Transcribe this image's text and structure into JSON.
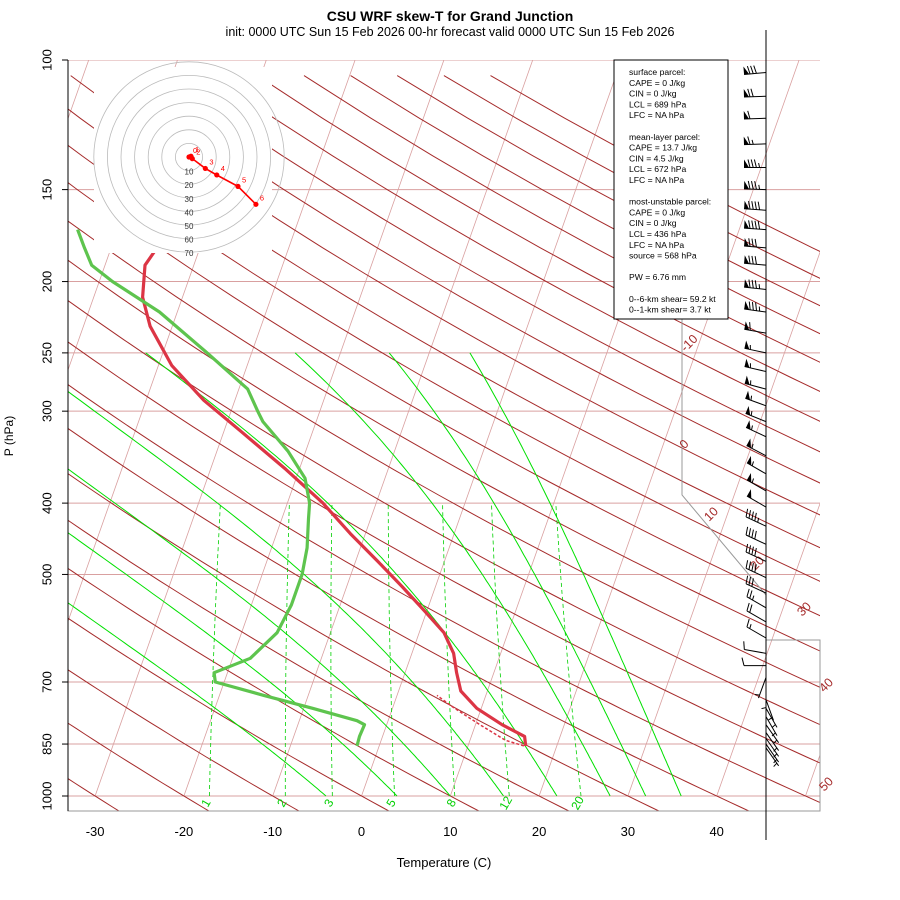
{
  "title": "CSU WRF skew-T for Grand Junction",
  "subtitle": "init: 0000 UTC Sun 15 Feb 2026     00-hr forecast valid 0000 UTC Sun 15 Feb 2026",
  "colors": {
    "temperature": "#dc3545",
    "dewpoint": "#5ec44e",
    "isotherm": "#a52a2a",
    "dry_adiabat": "#a52a2a",
    "moist_adiabat": "#00e000",
    "mixing_ratio": "#00d000",
    "isobar": "#d9a0a0",
    "hodograph": "#ff0000"
  },
  "chart_data": {
    "type": "line",
    "title": "CSU WRF skew-T for Grand Junction",
    "xlabel": "Temperature (C)",
    "ylabel": "P (hPa)",
    "xlim": [
      -33,
      52
    ],
    "ylim": [
      1000,
      100
    ],
    "y_scale": "log",
    "x_ticks": [
      -30,
      -20,
      -10,
      0,
      10,
      20,
      30,
      40
    ],
    "y_ticks": [
      100,
      150,
      200,
      250,
      300,
      400,
      500,
      700,
      850,
      1000
    ],
    "isotherm_labels": [
      -10,
      0,
      10,
      20,
      30,
      40,
      50
    ],
    "mixing_ratio_labels": [
      "1",
      "2",
      "3",
      "5",
      "8",
      "12",
      "20"
    ],
    "series": [
      {
        "role": "temperature",
        "points": [
          [
            855,
            16.5
          ],
          [
            830,
            16.0
          ],
          [
            800,
            13.0
          ],
          [
            760,
            9.5
          ],
          [
            720,
            7.0
          ],
          [
            680,
            5.8
          ],
          [
            640,
            4.7
          ],
          [
            600,
            2.8
          ],
          [
            560,
            -0.3
          ],
          [
            520,
            -3.7
          ],
          [
            480,
            -7.5
          ],
          [
            440,
            -11.7
          ],
          [
            400,
            -16.0
          ],
          [
            360,
            -21.5
          ],
          [
            320,
            -28.0
          ],
          [
            290,
            -33.5
          ],
          [
            260,
            -38.5
          ],
          [
            230,
            -42.5
          ],
          [
            210,
            -44.5
          ],
          [
            190,
            -45.5
          ],
          [
            175,
            -44.5
          ],
          [
            160,
            -43.0
          ],
          [
            150,
            -42.0
          ],
          [
            140,
            -44.0
          ],
          [
            130,
            -47.0
          ],
          [
            120,
            -50.5
          ],
          [
            110,
            -53.0
          ],
          [
            103,
            -55.0
          ]
        ]
      },
      {
        "role": "dewpoint",
        "points": [
          [
            855,
            -2.5
          ],
          [
            830,
            -2.6
          ],
          [
            800,
            -2.5
          ],
          [
            790,
            -3.5
          ],
          [
            760,
            -9.0
          ],
          [
            730,
            -15.0
          ],
          [
            700,
            -21.0
          ],
          [
            680,
            -21.5
          ],
          [
            650,
            -18.0
          ],
          [
            600,
            -16.0
          ],
          [
            550,
            -15.5
          ],
          [
            500,
            -15.5
          ],
          [
            460,
            -16.0
          ],
          [
            420,
            -17.0
          ],
          [
            400,
            -17.5
          ],
          [
            370,
            -19.0
          ],
          [
            340,
            -22.0
          ],
          [
            310,
            -26.0
          ],
          [
            300,
            -27.0
          ],
          [
            280,
            -29.0
          ],
          [
            250,
            -35.0
          ],
          [
            220,
            -42.0
          ],
          [
            200,
            -48.5
          ],
          [
            190,
            -51.5
          ],
          [
            180,
            -53.0
          ],
          [
            170,
            -54.5
          ]
        ]
      },
      {
        "role": "parcel",
        "points": [
          [
            855,
            16.3
          ],
          [
            840,
            14.0
          ],
          [
            800,
            10.5
          ],
          [
            760,
            7.0
          ],
          [
            730,
            4.5
          ]
        ]
      }
    ],
    "hodograph": {
      "rings": [
        "10",
        "20",
        "30",
        "40",
        "50",
        "60",
        "70"
      ],
      "point_labels": [
        "0",
        "1",
        "2",
        "3",
        "4",
        "5",
        "6"
      ],
      "points_uv": [
        [
          0,
          0
        ],
        [
          0.5,
          0.8
        ],
        [
          1.2,
          0.5
        ],
        [
          2.0,
          -1.0
        ],
        [
          10.0,
          -7.0
        ],
        [
          17.0,
          -11.0
        ],
        [
          30.0,
          -18.0
        ],
        [
          41.0,
          -29.0
        ]
      ]
    },
    "wind_barbs": [
      {
        "p": 104,
        "speed": 80,
        "dir": 265
      },
      {
        "p": 112,
        "speed": 70,
        "dir": 268
      },
      {
        "p": 120,
        "speed": 60,
        "dir": 268
      },
      {
        "p": 130,
        "speed": 65,
        "dir": 268
      },
      {
        "p": 140,
        "speed": 85,
        "dir": 270
      },
      {
        "p": 150,
        "speed": 85,
        "dir": 272
      },
      {
        "p": 160,
        "speed": 90,
        "dir": 274
      },
      {
        "p": 170,
        "speed": 90,
        "dir": 274
      },
      {
        "p": 180,
        "speed": 80,
        "dir": 275
      },
      {
        "p": 190,
        "speed": 80,
        "dir": 275
      },
      {
        "p": 205,
        "speed": 85,
        "dir": 276
      },
      {
        "p": 220,
        "speed": 85,
        "dir": 278
      },
      {
        "p": 235,
        "speed": 60,
        "dir": 280
      },
      {
        "p": 250,
        "speed": 55,
        "dir": 282
      },
      {
        "p": 265,
        "speed": 55,
        "dir": 283
      },
      {
        "p": 280,
        "speed": 55,
        "dir": 285
      },
      {
        "p": 295,
        "speed": 55,
        "dir": 290
      },
      {
        "p": 310,
        "speed": 55,
        "dir": 292
      },
      {
        "p": 325,
        "speed": 55,
        "dir": 295
      },
      {
        "p": 345,
        "speed": 55,
        "dir": 298
      },
      {
        "p": 365,
        "speed": 55,
        "dir": 300
      },
      {
        "p": 385,
        "speed": 55,
        "dir": 300
      },
      {
        "p": 405,
        "speed": 50,
        "dir": 300
      },
      {
        "p": 430,
        "speed": 45,
        "dir": 295
      },
      {
        "p": 455,
        "speed": 40,
        "dir": 295
      },
      {
        "p": 480,
        "speed": 40,
        "dir": 295
      },
      {
        "p": 505,
        "speed": 40,
        "dir": 295
      },
      {
        "p": 530,
        "speed": 30,
        "dir": 295
      },
      {
        "p": 555,
        "speed": 25,
        "dir": 300
      },
      {
        "p": 580,
        "speed": 20,
        "dir": 300
      },
      {
        "p": 610,
        "speed": 15,
        "dir": 300
      },
      {
        "p": 640,
        "speed": 10,
        "dir": 280
      },
      {
        "p": 665,
        "speed": 10,
        "dir": 270
      },
      {
        "p": 690,
        "speed": 5,
        "dir": 200
      },
      {
        "p": 715,
        "speed": 5,
        "dir": 180
      },
      {
        "p": 740,
        "speed": 5,
        "dir": 160
      },
      {
        "p": 760,
        "speed": 5,
        "dir": 150
      },
      {
        "p": 780,
        "speed": 5,
        "dir": 150
      },
      {
        "p": 800,
        "speed": 5,
        "dir": 145
      },
      {
        "p": 820,
        "speed": 5,
        "dir": 145
      },
      {
        "p": 835,
        "speed": 5,
        "dir": 145
      },
      {
        "p": 850,
        "speed": 5,
        "dir": 145
      },
      {
        "p": 860,
        "speed": 5,
        "dir": 145
      }
    ]
  },
  "info_box": {
    "lines": [
      "surface parcel:",
      "CAPE = 0 J/kg",
      "CIN = 0 J/kg",
      "LCL = 689 hPa",
      "LFC = NA hPa",
      "",
      "mean-layer parcel:",
      "CAPE = 13.7 J/kg",
      "CIN = 4.5 J/kg",
      "LCL = 672 hPa",
      "LFC = NA hPa",
      "",
      "most-unstable parcel:",
      "CAPE = 0 J/kg",
      "CIN = 0 J/kg",
      "LCL = 436 hPa",
      "LFC = NA hPa",
      "source = 568 hPa",
      "",
      "PW =  6.76 mm",
      "",
      "0--6-km shear= 59.2 kt",
      "0--1-km shear= 3.7 kt"
    ]
  }
}
